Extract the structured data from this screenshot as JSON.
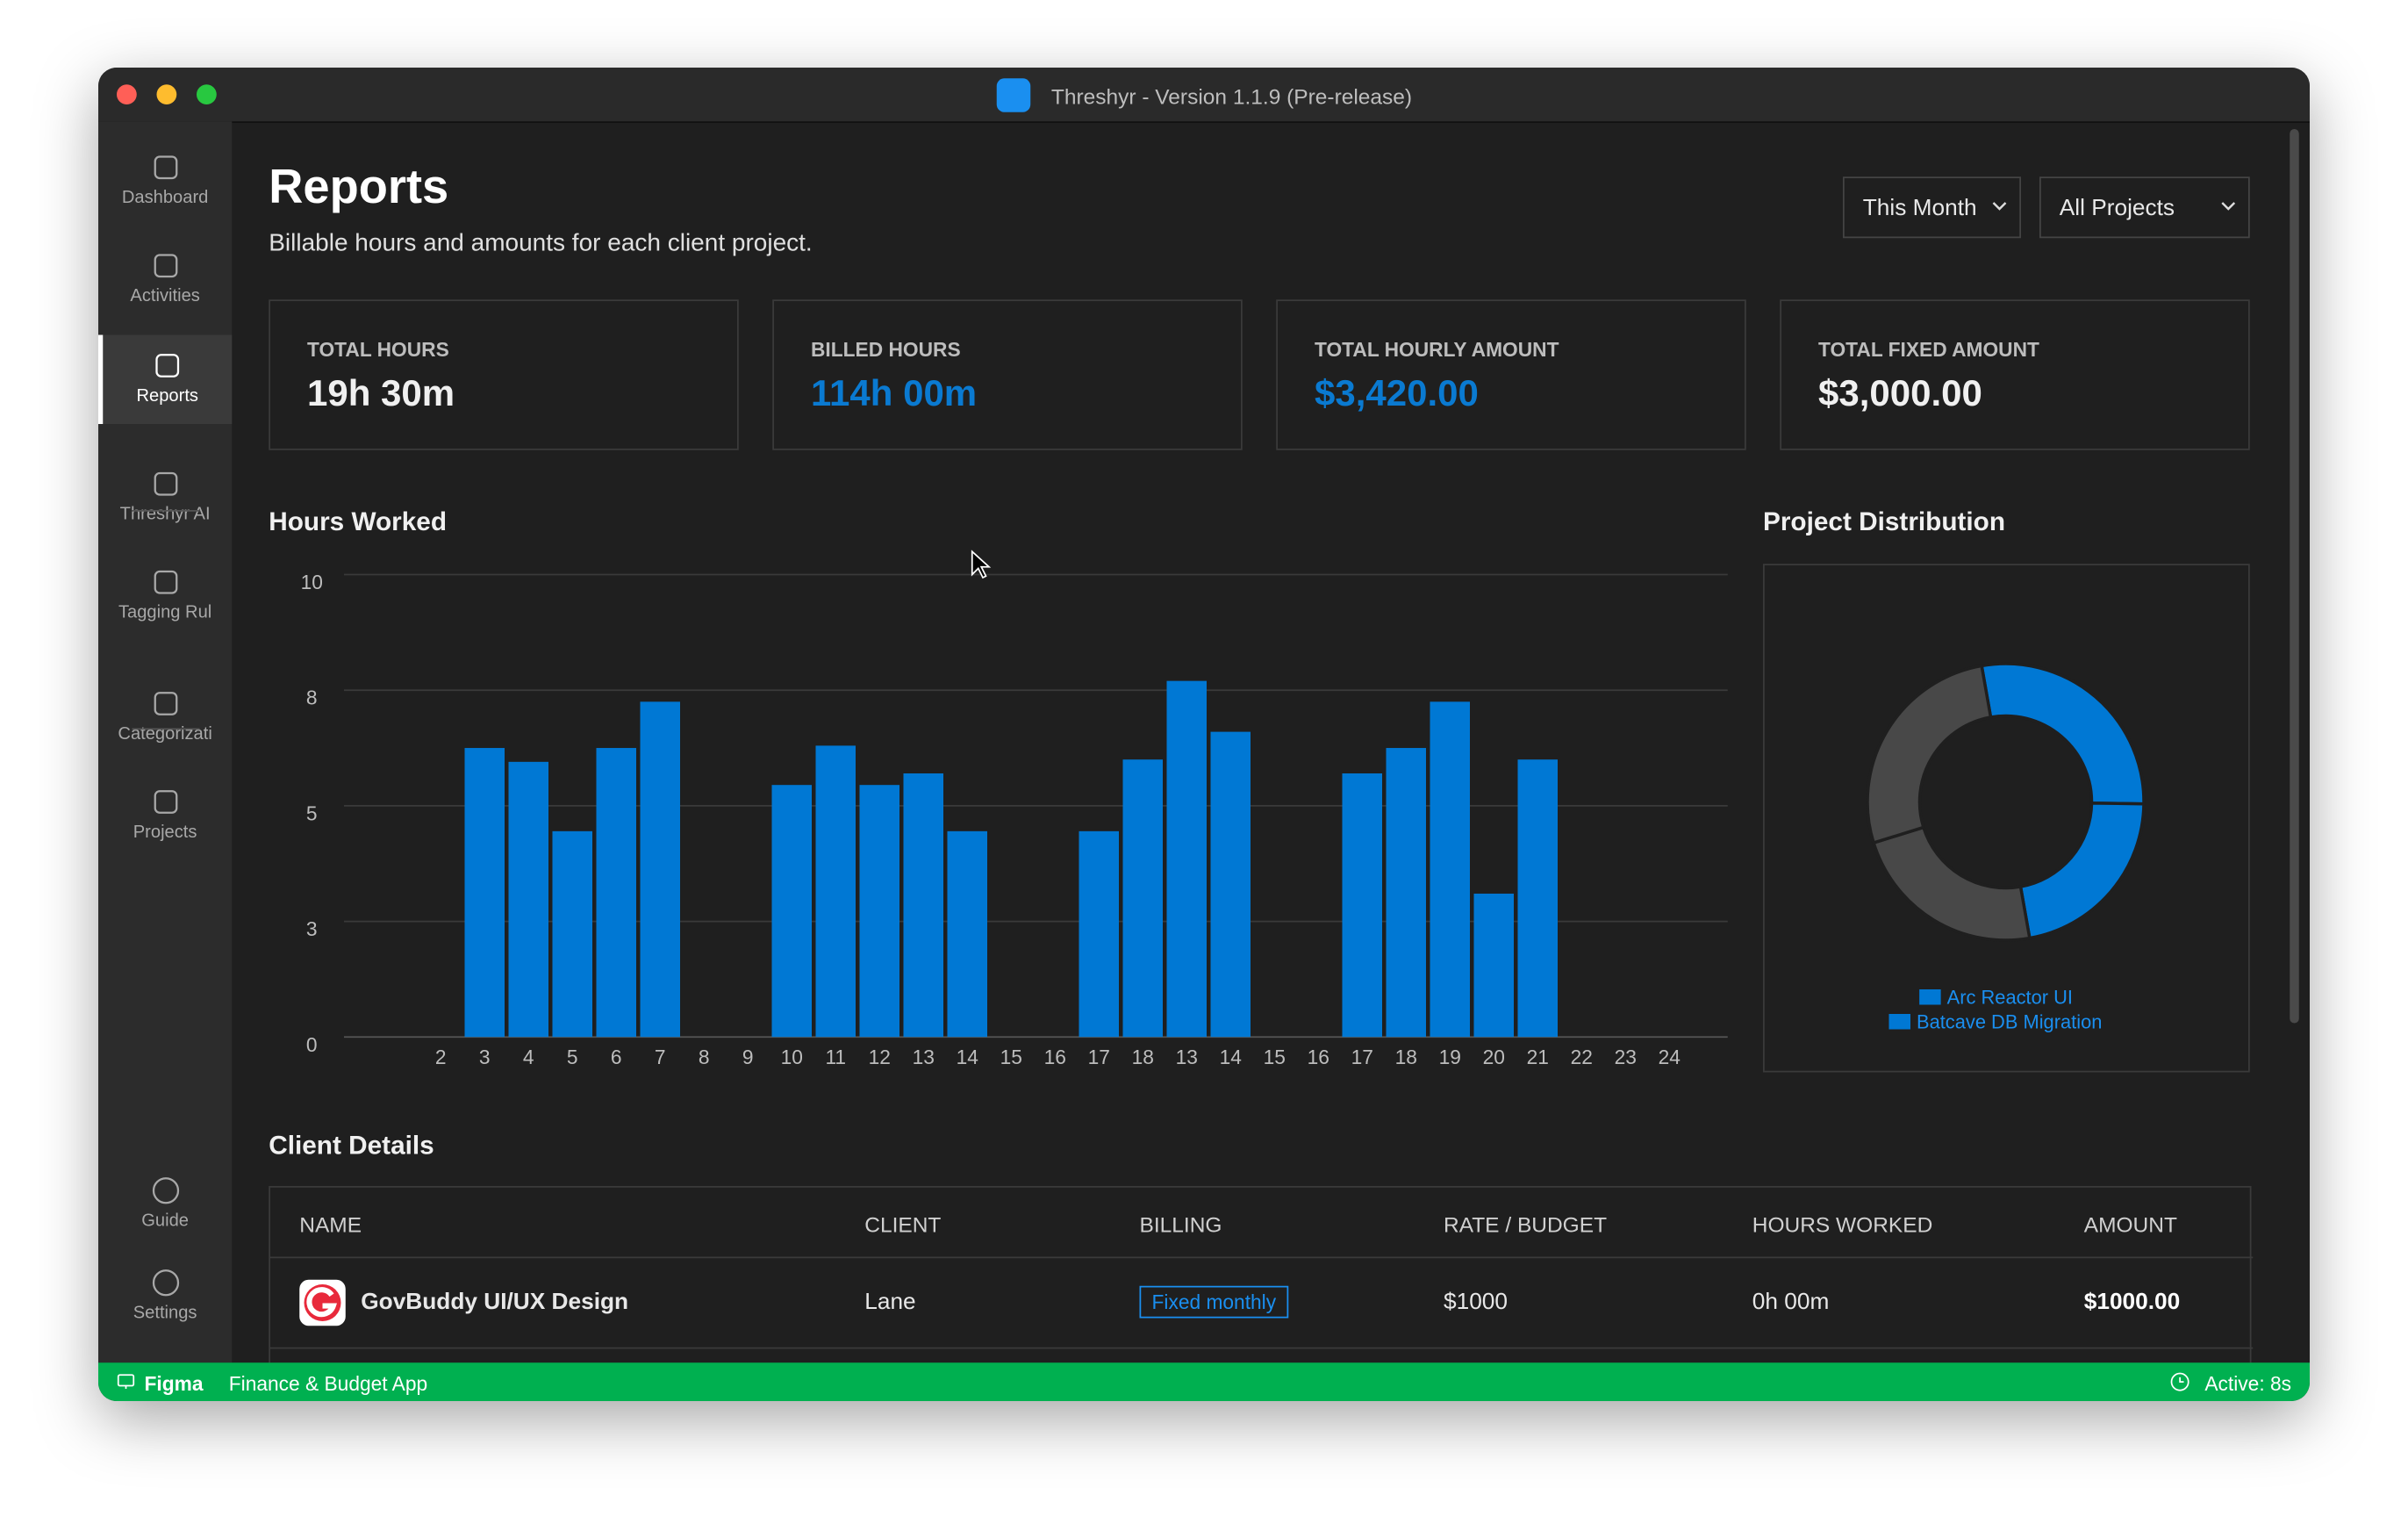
{
  "window": {
    "title": "Threshyr - Version 1.1.9 (Pre-release)"
  },
  "sidebar": {
    "items": [
      "Dashboard",
      "Activities",
      "Reports",
      "Threshyr AI",
      "Tagging Rul",
      "Categorizati",
      "Projects"
    ],
    "bottom": [
      "Guide",
      "Settings"
    ]
  },
  "header": {
    "title": "Reports",
    "subtitle": "Billable hours and amounts for each client project.",
    "filters": [
      "This Month",
      "All Projects"
    ]
  },
  "stats": [
    {
      "label": "TOTAL HOURS",
      "value": "19h 30m"
    },
    {
      "label": "BILLED HOURS",
      "value": "114h 00m"
    },
    {
      "label": "TOTAL HOURLY AMOUNT",
      "value": "$3,420.00"
    },
    {
      "label": "TOTAL FIXED AMOUNT",
      "value": "$3,000.00"
    }
  ],
  "chart_data": [
    {
      "type": "bar",
      "title": "Hours Worked",
      "categories": [
        "2",
        "3",
        "4",
        "5",
        "6",
        "7",
        "8",
        "9",
        "10",
        "11",
        "12",
        "13",
        "14",
        "15",
        "16",
        "17",
        "18",
        "13",
        "14",
        "15",
        "16",
        "17",
        "18",
        "19",
        "20",
        "21",
        "22",
        "23",
        "24"
      ],
      "values": [
        0,
        6.25,
        5.95,
        4.45,
        6.25,
        7.25,
        0,
        0,
        5.45,
        6.3,
        5.45,
        5.7,
        4.45,
        0,
        0,
        4.45,
        6.0,
        7.7,
        6.6,
        0,
        0,
        5.7,
        6.25,
        7.25,
        3.1,
        6.0,
        0,
        0,
        0
      ],
      "color": "#0078d4",
      "ylim": [
        0,
        10
      ],
      "yticks": [
        0,
        {
          "value": 2.5,
          "label": "3"
        },
        5,
        {
          "value": 7.5,
          "label": "8"
        },
        10
      ],
      "grid": true
    },
    {
      "type": "pie",
      "title": "Project Distribution",
      "segments": [
        {
          "name": "Arc Reactor UI",
          "value": 28,
          "color": "#0078d4"
        },
        {
          "name": "Batcave DB Migration",
          "value": 22,
          "color": "#0078d4"
        },
        {
          "value": 23,
          "color": "#484848"
        },
        {
          "value": 27,
          "color": "#484848"
        }
      ]
    }
  ],
  "client_details": {
    "title": "Client Details",
    "columns": [
      "NAME",
      "CLIENT",
      "BILLING",
      "RATE / BUDGET",
      "HOURS WORKED",
      "AMOUNT"
    ],
    "rows": [
      [
        "GovBuddy UI/UX Design",
        "Lane",
        "Fixed monthly",
        "$1000",
        "0h 00m",
        "$1000.00"
      ]
    ]
  },
  "status_bar": {
    "app": "Figma",
    "context": "Finance & Budget App",
    "active": "Active: 8s"
  }
}
